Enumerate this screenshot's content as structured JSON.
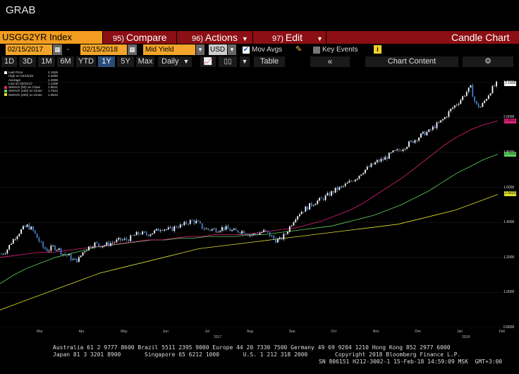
{
  "window_title": "GRAB",
  "menu": {
    "ticker": "USGG2YR Index",
    "compare": {
      "num": "95)",
      "label": "Compare"
    },
    "actions": {
      "num": "96)",
      "label": "Actions"
    },
    "edit": {
      "num": "97)",
      "label": "Edit"
    },
    "chart_type": "Candle Chart"
  },
  "controls": {
    "start_date": "02/15/2017",
    "dash": "-",
    "end_date": "02/15/2018",
    "field": "Mid Yield",
    "currency": "USD",
    "mov_avgs_label": "Mov Avgs",
    "mov_avgs_checked": true,
    "key_events_label": "Key Events",
    "key_events_checked": false,
    "info_icon_text": "i"
  },
  "toolbar": {
    "periods": [
      "1D",
      "3D",
      "1M",
      "6M",
      "YTD",
      "1Y",
      "5Y",
      "Max"
    ],
    "selected_period": "1Y",
    "frequency": "Daily",
    "table_label": "Table",
    "chart_content_label": "Chart Content"
  },
  "legend": [
    {
      "label": "Last Price",
      "value": "2.1926",
      "color": "#ffffff"
    },
    {
      "label": "High on 02/15/18",
      "value": "2.2090",
      "color": "#000000"
    },
    {
      "label": "Average",
      "value": "1.4995",
      "color": "#000000"
    },
    {
      "label": "Low on 02/24/17",
      "value": "1.1408",
      "color": "#000000"
    },
    {
      "label": "SMAVG (50) on Close",
      "value": "1.9811",
      "color": "#e0207a"
    },
    {
      "label": "SMAVG (100) on Close",
      "value": "1.7912",
      "color": "#60d060"
    },
    {
      "label": "SMAVG (200) on Close",
      "value": "1.5623",
      "color": "#e0e030"
    }
  ],
  "chart_data": {
    "type": "candlestick",
    "title": "",
    "xlabel": "",
    "ylabel": "",
    "ylim": [
      0.8,
      2.28
    ],
    "y_ticks": [
      "2.2000",
      "2.0000",
      "1.8000",
      "1.6000",
      "1.4000",
      "1.2000",
      "1.0000",
      "0.8000"
    ],
    "x_ticks": [
      "Mar",
      "Apr",
      "May",
      "Jun",
      "Jul",
      "Aug",
      "Sep",
      "Oct",
      "Nov",
      "Dec",
      "Jan",
      "Feb"
    ],
    "year_labels": [
      "2017",
      "2018"
    ],
    "last_price_flag": "2.1926",
    "sma_flags": [
      {
        "value": "1.9811",
        "color": "#e0207a"
      },
      {
        "value": "1.7912",
        "color": "#60d060"
      },
      {
        "value": "1.5623",
        "color": "#e0e030"
      }
    ],
    "close_series": [
      1.22,
      1.24,
      1.29,
      1.33,
      1.36,
      1.38,
      1.36,
      1.31,
      1.26,
      1.24,
      1.26,
      1.25,
      1.22,
      1.21,
      1.18,
      1.19,
      1.24,
      1.26,
      1.28,
      1.27,
      1.27,
      1.28,
      1.29,
      1.3,
      1.3,
      1.31,
      1.33,
      1.34,
      1.33,
      1.34,
      1.35,
      1.37,
      1.36,
      1.36,
      1.38,
      1.38,
      1.4,
      1.41,
      1.4,
      1.37,
      1.36,
      1.36,
      1.36,
      1.37,
      1.36,
      1.35,
      1.35,
      1.35,
      1.33,
      1.33,
      1.34,
      1.35,
      1.33,
      1.3,
      1.3,
      1.33,
      1.38,
      1.43,
      1.46,
      1.48,
      1.5,
      1.52,
      1.53,
      1.55,
      1.57,
      1.59,
      1.6,
      1.62,
      1.64,
      1.66,
      1.69,
      1.71,
      1.73,
      1.75,
      1.76,
      1.78,
      1.8,
      1.81,
      1.83,
      1.85,
      1.87,
      1.89,
      1.91,
      1.92,
      1.95,
      1.97,
      2.0,
      2.04,
      2.07,
      2.1,
      2.14,
      2.17,
      2.07,
      2.06,
      2.11,
      2.16,
      2.19
    ],
    "sma50": [
      1.2,
      1.21,
      1.22,
      1.23,
      1.23,
      1.24,
      1.25,
      1.26,
      1.27,
      1.28,
      1.29,
      1.3,
      1.3,
      1.31,
      1.32,
      1.32,
      1.33,
      1.33,
      1.33,
      1.34,
      1.35,
      1.36,
      1.37,
      1.39,
      1.41,
      1.44,
      1.47,
      1.51,
      1.56,
      1.61,
      1.66,
      1.72,
      1.78,
      1.84,
      1.89,
      1.93,
      1.96,
      1.98
    ],
    "sma100": [
      1.05,
      1.1,
      1.14,
      1.17,
      1.2,
      1.22,
      1.24,
      1.26,
      1.27,
      1.28,
      1.29,
      1.3,
      1.3,
      1.31,
      1.31,
      1.32,
      1.32,
      1.32,
      1.33,
      1.33,
      1.34,
      1.35,
      1.36,
      1.37,
      1.38,
      1.4,
      1.42,
      1.44,
      1.47,
      1.5,
      1.54,
      1.58,
      1.63,
      1.68,
      1.72,
      1.76,
      1.79
    ],
    "sma200": [
      0.9,
      0.93,
      0.96,
      0.99,
      1.02,
      1.05,
      1.08,
      1.11,
      1.13,
      1.15,
      1.17,
      1.19,
      1.21,
      1.23,
      1.25,
      1.26,
      1.27,
      1.28,
      1.29,
      1.3,
      1.31,
      1.32,
      1.33,
      1.34,
      1.35,
      1.36,
      1.37,
      1.38,
      1.39,
      1.41,
      1.43,
      1.45,
      1.47,
      1.5,
      1.53,
      1.56
    ]
  },
  "footer": {
    "line1": "Australia 61 2 9777 8600 Brazil 5511 2395 9000 Europe 44 20 7330 7500 Germany 49 69 9204 1210 Hong Kong 852 2977 6000",
    "line2a": "Japan 81 3 3201 8900       Singapore 65 6212 1000       U.S. 1 212 318 2000",
    "line2b": "Copyright 2018 Bloomberg Finance L.P.",
    "line3": "SN 806151 H212-3002-1 15-Feb-18 14:59:09 MSK  GMT+3:00"
  }
}
